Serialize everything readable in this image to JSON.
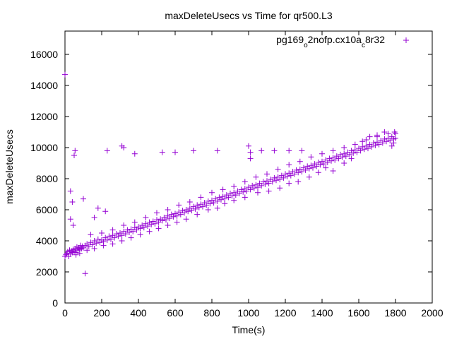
{
  "chart_data": {
    "type": "scatter",
    "title": "maxDeleteUsecs vs Time for qr500.L3",
    "xlabel": "Time(s)",
    "ylabel": "maxDeleteUsecs",
    "xlim": [
      0,
      2000
    ],
    "ylim": [
      0,
      17500
    ],
    "xticks": [
      "0",
      "200",
      "400",
      "600",
      "800",
      "1000",
      "1200",
      "1400",
      "1600",
      "1800",
      "2000"
    ],
    "yticks": [
      "0",
      "2000",
      "4000",
      "6000",
      "8000",
      "10000",
      "12000",
      "14000",
      "16000"
    ],
    "grid": false,
    "legend_position": "top-right",
    "series": [
      {
        "name": "pg169_o2nofp.cx10a_c8r32",
        "legend": {
          "base": "pg169",
          "sub1": "o",
          "mid": "2nofp.cx10a",
          "sub2": "c",
          "tail": "8r32"
        },
        "color": "#9400d3",
        "marker": "+",
        "points": [
          [
            0,
            3000
          ],
          [
            0,
            14700
          ],
          [
            5,
            3100
          ],
          [
            10,
            3200
          ],
          [
            15,
            3300
          ],
          [
            20,
            3000
          ],
          [
            25,
            3400
          ],
          [
            30,
            3150
          ],
          [
            35,
            3350
          ],
          [
            40,
            3250
          ],
          [
            45,
            3450
          ],
          [
            50,
            3300
          ],
          [
            55,
            3500
          ],
          [
            60,
            3250
          ],
          [
            65,
            3600
          ],
          [
            70,
            3400
          ],
          [
            75,
            3550
          ],
          [
            80,
            3450
          ],
          [
            85,
            3700
          ],
          [
            90,
            3500
          ],
          [
            95,
            3650
          ],
          [
            100,
            3550
          ],
          [
            110,
            3700
          ],
          [
            120,
            3800
          ],
          [
            130,
            3650
          ],
          [
            140,
            3900
          ],
          [
            150,
            3750
          ],
          [
            160,
            4000
          ],
          [
            170,
            3850
          ],
          [
            180,
            4100
          ],
          [
            190,
            3900
          ],
          [
            200,
            4050
          ],
          [
            210,
            3950
          ],
          [
            220,
            4200
          ],
          [
            230,
            4050
          ],
          [
            240,
            4300
          ],
          [
            250,
            4100
          ],
          [
            260,
            4350
          ],
          [
            270,
            4200
          ],
          [
            280,
            4450
          ],
          [
            290,
            4300
          ],
          [
            300,
            4500
          ],
          [
            310,
            4350
          ],
          [
            320,
            4600
          ],
          [
            330,
            4450
          ],
          [
            340,
            4700
          ],
          [
            350,
            4550
          ],
          [
            360,
            4750
          ],
          [
            370,
            4600
          ],
          [
            380,
            4850
          ],
          [
            390,
            4700
          ],
          [
            400,
            4900
          ],
          [
            410,
            4800
          ],
          [
            420,
            5000
          ],
          [
            430,
            4850
          ],
          [
            440,
            5100
          ],
          [
            450,
            4950
          ],
          [
            460,
            5200
          ],
          [
            470,
            5050
          ],
          [
            480,
            5250
          ],
          [
            490,
            5100
          ],
          [
            500,
            5350
          ],
          [
            510,
            5200
          ],
          [
            520,
            5400
          ],
          [
            530,
            5300
          ],
          [
            540,
            5500
          ],
          [
            550,
            5350
          ],
          [
            560,
            5600
          ],
          [
            570,
            5450
          ],
          [
            580,
            5700
          ],
          [
            590,
            5550
          ],
          [
            600,
            5750
          ],
          [
            610,
            5600
          ],
          [
            620,
            5850
          ],
          [
            630,
            5700
          ],
          [
            640,
            5950
          ],
          [
            650,
            5800
          ],
          [
            660,
            6000
          ],
          [
            670,
            5900
          ],
          [
            680,
            6100
          ],
          [
            690,
            5950
          ],
          [
            700,
            6200
          ],
          [
            710,
            6050
          ],
          [
            720,
            6300
          ],
          [
            730,
            6150
          ],
          [
            740,
            6350
          ],
          [
            750,
            6200
          ],
          [
            760,
            6450
          ],
          [
            770,
            6300
          ],
          [
            780,
            6550
          ],
          [
            790,
            6400
          ],
          [
            800,
            6600
          ],
          [
            810,
            6450
          ],
          [
            820,
            6700
          ],
          [
            830,
            6550
          ],
          [
            840,
            6800
          ],
          [
            850,
            6650
          ],
          [
            860,
            6850
          ],
          [
            870,
            6700
          ],
          [
            880,
            6950
          ],
          [
            890,
            6800
          ],
          [
            900,
            7050
          ],
          [
            910,
            6900
          ],
          [
            920,
            7100
          ],
          [
            930,
            6950
          ],
          [
            940,
            7200
          ],
          [
            950,
            7050
          ],
          [
            960,
            7300
          ],
          [
            970,
            7150
          ],
          [
            980,
            7350
          ],
          [
            990,
            7200
          ],
          [
            1000,
            7450
          ],
          [
            1010,
            7300
          ],
          [
            1020,
            7550
          ],
          [
            1030,
            7400
          ],
          [
            1040,
            7600
          ],
          [
            1050,
            7450
          ],
          [
            1060,
            7700
          ],
          [
            1070,
            7550
          ],
          [
            1080,
            7800
          ],
          [
            1090,
            7650
          ],
          [
            1100,
            7850
          ],
          [
            1110,
            7700
          ],
          [
            1120,
            7950
          ],
          [
            1130,
            7800
          ],
          [
            1140,
            8050
          ],
          [
            1150,
            7900
          ],
          [
            1160,
            8100
          ],
          [
            1170,
            7950
          ],
          [
            1180,
            8200
          ],
          [
            1190,
            8050
          ],
          [
            1200,
            8300
          ],
          [
            1210,
            8150
          ],
          [
            1220,
            8350
          ],
          [
            1230,
            8200
          ],
          [
            1240,
            8450
          ],
          [
            1250,
            8300
          ],
          [
            1260,
            8550
          ],
          [
            1270,
            8400
          ],
          [
            1280,
            8600
          ],
          [
            1290,
            8450
          ],
          [
            1300,
            8700
          ],
          [
            1310,
            8550
          ],
          [
            1320,
            8800
          ],
          [
            1330,
            8650
          ],
          [
            1340,
            8850
          ],
          [
            1350,
            8700
          ],
          [
            1360,
            8950
          ],
          [
            1370,
            8800
          ],
          [
            1380,
            9050
          ],
          [
            1390,
            8900
          ],
          [
            1400,
            9100
          ],
          [
            1410,
            8950
          ],
          [
            1420,
            9200
          ],
          [
            1430,
            9050
          ],
          [
            1440,
            9300
          ],
          [
            1450,
            9150
          ],
          [
            1460,
            9350
          ],
          [
            1470,
            9200
          ],
          [
            1480,
            9450
          ],
          [
            1490,
            9300
          ],
          [
            1500,
            9550
          ],
          [
            1510,
            9400
          ],
          [
            1520,
            9600
          ],
          [
            1530,
            9450
          ],
          [
            1540,
            9700
          ],
          [
            1550,
            9550
          ],
          [
            1560,
            9800
          ],
          [
            1570,
            9650
          ],
          [
            1580,
            9850
          ],
          [
            1590,
            9700
          ],
          [
            1600,
            9950
          ],
          [
            1610,
            9800
          ],
          [
            1620,
            10050
          ],
          [
            1630,
            9900
          ],
          [
            1640,
            10100
          ],
          [
            1650,
            9950
          ],
          [
            1660,
            10200
          ],
          [
            1670,
            10050
          ],
          [
            1680,
            10300
          ],
          [
            1690,
            10150
          ],
          [
            1700,
            10350
          ],
          [
            1710,
            10200
          ],
          [
            1720,
            10450
          ],
          [
            1730,
            10300
          ],
          [
            1740,
            10550
          ],
          [
            1750,
            10400
          ],
          [
            1760,
            10600
          ],
          [
            1770,
            10450
          ],
          [
            1780,
            10700
          ],
          [
            1790,
            10550
          ],
          [
            1795,
            11000
          ],
          [
            1800,
            10600
          ],
          [
            30,
            7200
          ],
          [
            40,
            6500
          ],
          [
            50,
            9500
          ],
          [
            55,
            9800
          ],
          [
            45,
            5000
          ],
          [
            30,
            5400
          ],
          [
            100,
            6700
          ],
          [
            110,
            1900
          ],
          [
            160,
            5500
          ],
          [
            180,
            6100
          ],
          [
            220,
            5900
          ],
          [
            230,
            9800
          ],
          [
            310,
            10100
          ],
          [
            320,
            10000
          ],
          [
            380,
            9600
          ],
          [
            530,
            9700
          ],
          [
            600,
            9700
          ],
          [
            700,
            9800
          ],
          [
            830,
            9800
          ],
          [
            1000,
            10100
          ],
          [
            1010,
            9700
          ],
          [
            1010,
            9300
          ],
          [
            1070,
            9800
          ],
          [
            1140,
            9800
          ],
          [
            1220,
            9800
          ],
          [
            1290,
            9800
          ],
          [
            1620,
            10400
          ],
          [
            1660,
            10700
          ],
          [
            1700,
            10800
          ],
          [
            1740,
            11000
          ],
          [
            1560,
            9300
          ],
          [
            1520,
            9000
          ],
          [
            1460,
            8500
          ],
          [
            1420,
            8700
          ],
          [
            1380,
            8400
          ],
          [
            1330,
            8100
          ],
          [
            1270,
            7800
          ],
          [
            1220,
            7700
          ],
          [
            1170,
            7400
          ],
          [
            1110,
            7200
          ],
          [
            1050,
            7100
          ],
          [
            980,
            6800
          ],
          [
            920,
            6600
          ],
          [
            870,
            6400
          ],
          [
            830,
            6100
          ],
          [
            780,
            6000
          ],
          [
            720,
            5700
          ],
          [
            660,
            5400
          ],
          [
            610,
            5200
          ],
          [
            560,
            5000
          ],
          [
            510,
            4800
          ],
          [
            460,
            4600
          ],
          [
            410,
            4400
          ],
          [
            360,
            4200
          ],
          [
            310,
            4000
          ],
          [
            260,
            3800
          ],
          [
            210,
            3700
          ],
          [
            160,
            3500
          ],
          [
            120,
            3400
          ],
          [
            80,
            3200
          ],
          [
            60,
            3100
          ],
          [
            140,
            4400
          ],
          [
            200,
            4500
          ],
          [
            260,
            4700
          ],
          [
            320,
            5000
          ],
          [
            380,
            5200
          ],
          [
            440,
            5500
          ],
          [
            500,
            5800
          ],
          [
            560,
            6000
          ],
          [
            620,
            6300
          ],
          [
            680,
            6500
          ],
          [
            740,
            6800
          ],
          [
            800,
            7100
          ],
          [
            860,
            7300
          ],
          [
            920,
            7500
          ],
          [
            980,
            7800
          ],
          [
            1040,
            8100
          ],
          [
            1100,
            8300
          ],
          [
            1160,
            8600
          ],
          [
            1220,
            8900
          ],
          [
            1280,
            9100
          ],
          [
            1340,
            9400
          ],
          [
            1400,
            9600
          ],
          [
            1460,
            9800
          ],
          [
            1520,
            10000
          ],
          [
            1580,
            10200
          ],
          [
            1640,
            10500
          ],
          [
            1700,
            10700
          ],
          [
            1760,
            10900
          ],
          [
            1780,
            10100
          ],
          [
            1800,
            10900
          ],
          [
            1790,
            10300
          ]
        ]
      }
    ]
  }
}
